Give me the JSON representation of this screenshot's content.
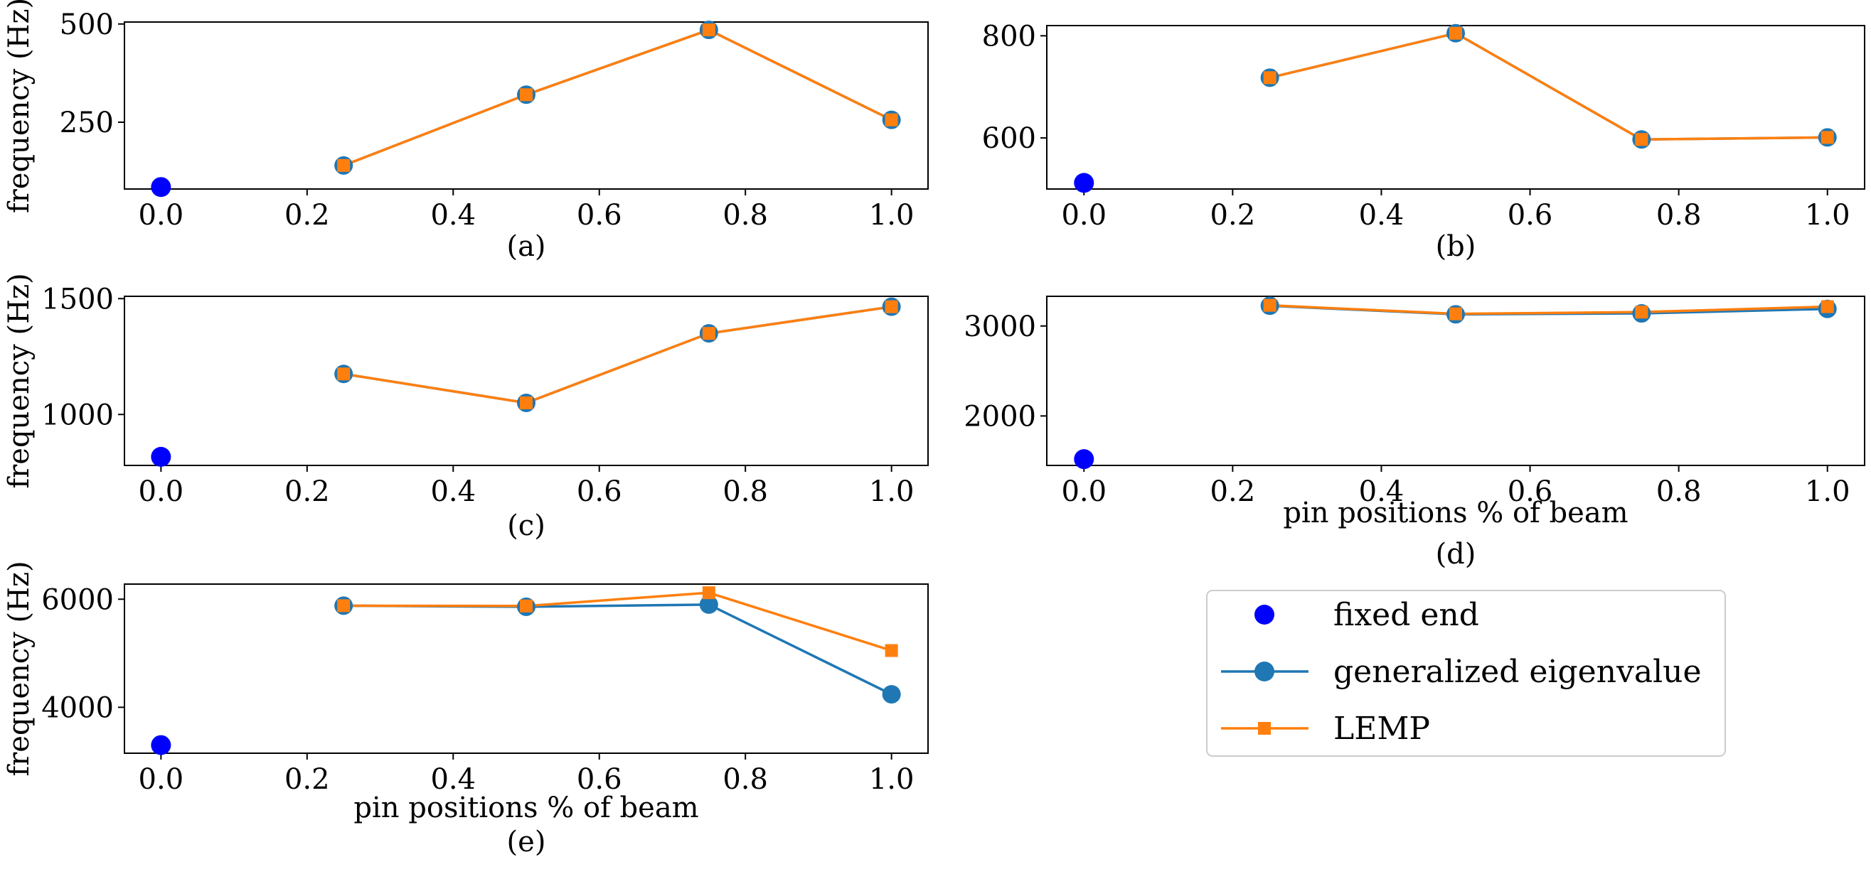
{
  "figure": {
    "legend": {
      "placement": "right of panel (e)",
      "entries": [
        {
          "label": "fixed end",
          "marker": "circle",
          "color": "#0000ff",
          "line": false
        },
        {
          "label": "generalized eigenvalue",
          "marker": "circle",
          "color": "#1f77b4",
          "line": true
        },
        {
          "label": "LEMP",
          "marker": "square",
          "color": "#ff7f0e",
          "line": true
        }
      ]
    }
  },
  "chart_data": [
    {
      "type": "line",
      "caption": "(a)",
      "xlabel": "",
      "ylabel": "frequency (Hz)",
      "xlim": [
        -0.05,
        1.05
      ],
      "ylim": [
        80,
        505
      ],
      "xticks": [
        "0.0",
        "0.2",
        "0.4",
        "0.6",
        "0.8",
        "1.0"
      ],
      "yticks": [
        "250",
        "500"
      ],
      "fixed_end": {
        "x": 0.0,
        "y": 85
      },
      "series": [
        {
          "name": "generalized eigenvalue",
          "x": [
            0.25,
            0.5,
            0.75,
            1.0
          ],
          "y": [
            140,
            320,
            485,
            256
          ]
        },
        {
          "name": "LEMP",
          "x": [
            0.25,
            0.5,
            0.75,
            1.0
          ],
          "y": [
            140,
            320,
            485,
            256
          ]
        }
      ]
    },
    {
      "type": "line",
      "caption": "(b)",
      "xlabel": "",
      "ylabel": "",
      "xlim": [
        -0.05,
        1.05
      ],
      "ylim": [
        500,
        820
      ],
      "xticks": [
        "0.0",
        "0.2",
        "0.4",
        "0.6",
        "0.8",
        "1.0"
      ],
      "yticks": [
        "600",
        "800"
      ],
      "fixed_end": {
        "x": 0.0,
        "y": 512
      },
      "series": [
        {
          "name": "generalized eigenvalue",
          "x": [
            0.25,
            0.5,
            0.75,
            1.0
          ],
          "y": [
            718,
            805,
            597,
            601
          ]
        },
        {
          "name": "LEMP",
          "x": [
            0.25,
            0.5,
            0.75,
            1.0
          ],
          "y": [
            718,
            805,
            597,
            601
          ]
        }
      ]
    },
    {
      "type": "line",
      "caption": "(c)",
      "xlabel": "",
      "ylabel": "frequency (Hz)",
      "xlim": [
        -0.05,
        1.05
      ],
      "ylim": [
        780,
        1510
      ],
      "xticks": [
        "0.0",
        "0.2",
        "0.4",
        "0.6",
        "0.8",
        "1.0"
      ],
      "yticks": [
        "1000",
        "1500"
      ],
      "fixed_end": {
        "x": 0.0,
        "y": 817
      },
      "series": [
        {
          "name": "generalized eigenvalue",
          "x": [
            0.25,
            0.5,
            0.75,
            1.0
          ],
          "y": [
            1175,
            1050,
            1350,
            1465
          ]
        },
        {
          "name": "LEMP",
          "x": [
            0.25,
            0.5,
            0.75,
            1.0
          ],
          "y": [
            1175,
            1050,
            1350,
            1465
          ]
        }
      ]
    },
    {
      "type": "line",
      "caption": "(d)",
      "xlabel": "pin positions % of beam",
      "ylabel": "",
      "xlim": [
        -0.05,
        1.05
      ],
      "ylim": [
        1450,
        3330
      ],
      "xticks": [
        "0.0",
        "0.2",
        "0.4",
        "0.6",
        "0.8",
        "1.0"
      ],
      "yticks": [
        "2000",
        "3000"
      ],
      "fixed_end": {
        "x": 0.0,
        "y": 1520
      },
      "series": [
        {
          "name": "generalized eigenvalue",
          "x": [
            0.25,
            0.5,
            0.75,
            1.0
          ],
          "y": [
            3225,
            3130,
            3140,
            3190
          ]
        },
        {
          "name": "LEMP",
          "x": [
            0.25,
            0.5,
            0.75,
            1.0
          ],
          "y": [
            3230,
            3135,
            3155,
            3215
          ]
        }
      ]
    },
    {
      "type": "line",
      "caption": "(e)",
      "xlabel": "pin positions % of beam",
      "ylabel": "frequency (Hz)",
      "xlim": [
        -0.05,
        1.05
      ],
      "ylim": [
        3150,
        6280
      ],
      "xticks": [
        "0.0",
        "0.2",
        "0.4",
        "0.6",
        "0.8",
        "1.0"
      ],
      "yticks": [
        "4000",
        "6000"
      ],
      "fixed_end": {
        "x": 0.0,
        "y": 3300
      },
      "series": [
        {
          "name": "generalized eigenvalue",
          "x": [
            0.25,
            0.5,
            0.75,
            1.0
          ],
          "y": [
            5880,
            5860,
            5900,
            4240
          ]
        },
        {
          "name": "LEMP",
          "x": [
            0.25,
            0.5,
            0.75,
            1.0
          ],
          "y": [
            5880,
            5875,
            6120,
            5050
          ]
        }
      ]
    }
  ]
}
